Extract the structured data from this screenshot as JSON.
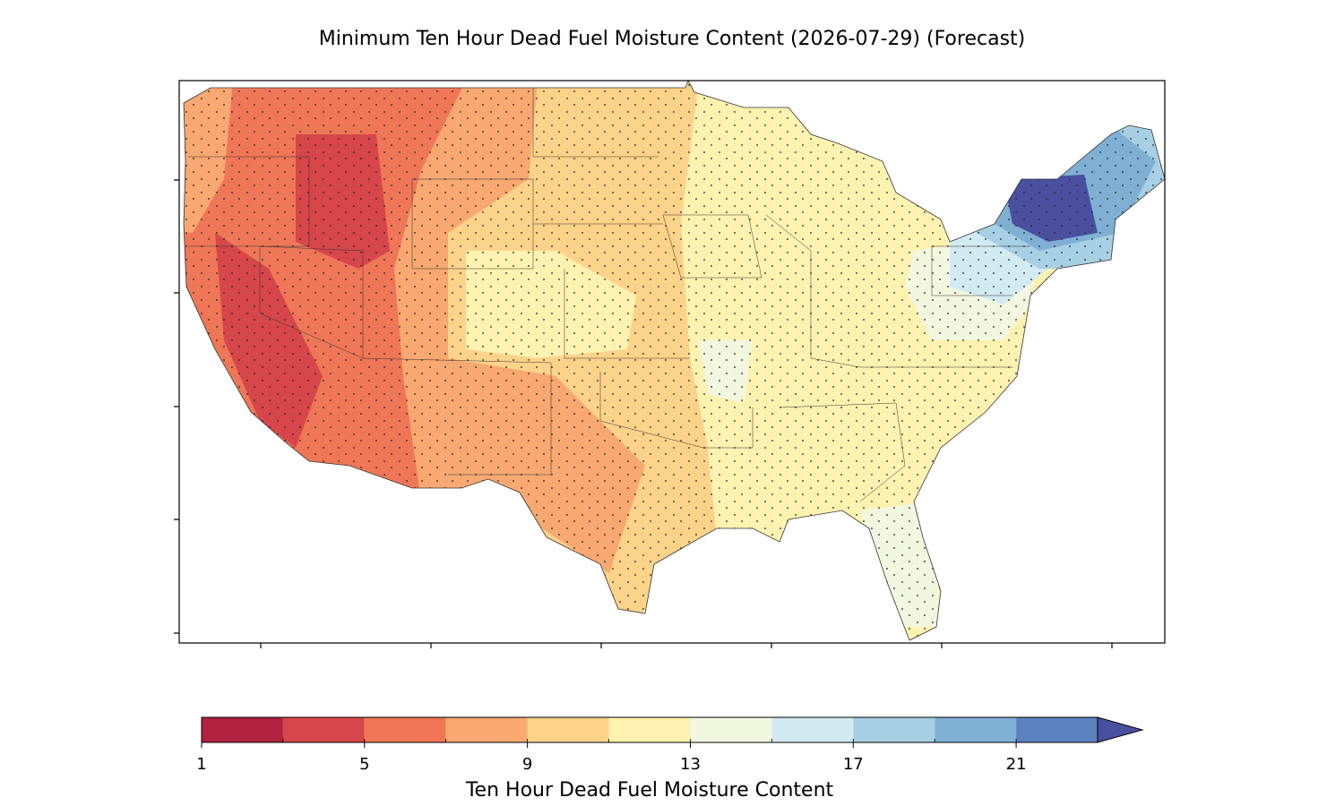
{
  "title": "Minimum Ten Hour Dead Fuel Moisture Content (2026-07-29) (Forecast)",
  "colorbar": {
    "label": "Ten Hour Dead Fuel Moisture Content",
    "levels": [
      1,
      3,
      5,
      7,
      9,
      11,
      13,
      15,
      17,
      19,
      21,
      23
    ],
    "colors": [
      "#b2213f",
      "#d6464a",
      "#ef7757",
      "#f8a870",
      "#fdd38a",
      "#fef2b0",
      "#f2f8e0",
      "#d2eaf2",
      "#a8d0e4",
      "#7fb0d4",
      "#5b82be"
    ],
    "extend_color": "#4a4fa0",
    "ticks": [
      1,
      5,
      9,
      13,
      17,
      21
    ]
  }
}
